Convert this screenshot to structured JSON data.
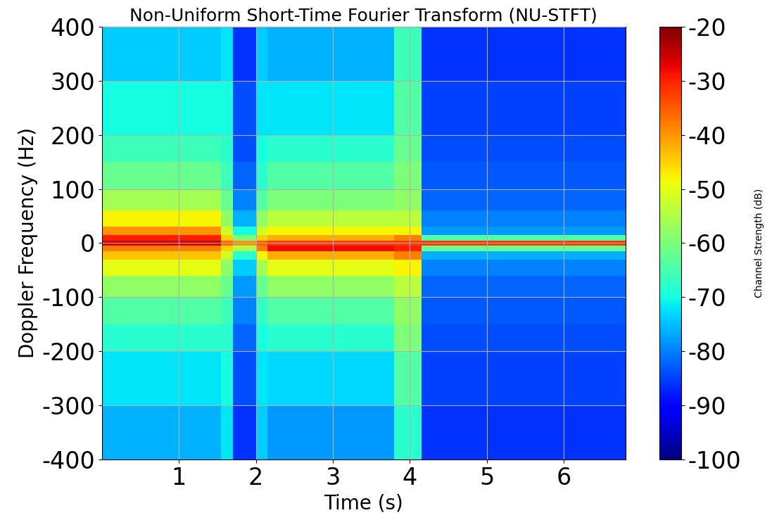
{
  "chart_data": {
    "type": "heatmap",
    "title": "Non-Uniform Short-Time Fourier Transform (NU-STFT)",
    "xlabel": "Time (s)",
    "ylabel": "Doppler Frequency (Hz)",
    "x_edges": [
      0,
      0.5,
      1.0,
      1.55,
      1.7,
      2.0,
      2.15,
      2.6,
      3.1,
      3.6,
      3.8,
      4.15,
      4.6,
      5.2,
      5.8,
      6.4,
      6.8
    ],
    "y_edges": [
      -400,
      -300,
      -200,
      -150,
      -100,
      -60,
      -30,
      -15,
      -5,
      5,
      15,
      30,
      60,
      100,
      150,
      200,
      300,
      400
    ],
    "cells": [
      [
        -76,
        -76,
        -76,
        -72,
        -86,
        -74,
        -78,
        -78,
        -78,
        -78,
        -68,
        -86,
        -86,
        -86,
        -86,
        -86
      ],
      [
        -72,
        -72,
        -72,
        -70,
        -84,
        -72,
        -73,
        -73,
        -73,
        -73,
        -64,
        -85,
        -85,
        -85,
        -85,
        -85
      ],
      [
        -68,
        -68,
        -68,
        -68,
        -82,
        -70,
        -68,
        -68,
        -68,
        -68,
        -60,
        -84,
        -84,
        -84,
        -84,
        -84
      ],
      [
        -64,
        -64,
        -64,
        -66,
        -80,
        -67,
        -64,
        -64,
        -64,
        -64,
        -58,
        -83,
        -83,
        -83,
        -83,
        -83
      ],
      [
        -58,
        -58,
        -58,
        -62,
        -78,
        -62,
        -58,
        -58,
        -58,
        -58,
        -54,
        -82,
        -82,
        -82,
        -82,
        -82
      ],
      [
        -50,
        -50,
        -50,
        -58,
        -74,
        -56,
        -50,
        -50,
        -50,
        -50,
        -48,
        -80,
        -80,
        -80,
        -80,
        -80
      ],
      [
        -44,
        -44,
        -44,
        -52,
        -68,
        -48,
        -42,
        -42,
        -42,
        -42,
        -38,
        -76,
        -76,
        -76,
        -76,
        -76
      ],
      [
        -38,
        -38,
        -38,
        -45,
        -55,
        -38,
        -28,
        -28,
        -28,
        -28,
        -30,
        -62,
        -62,
        -62,
        -62,
        -62
      ],
      [
        -26,
        -26,
        -26,
        -36,
        -40,
        -35,
        -32,
        -32,
        -32,
        -32,
        -32,
        -32,
        -32,
        -32,
        -32,
        -32
      ],
      [
        -30,
        -30,
        -30,
        -45,
        -60,
        -45,
        -42,
        -42,
        -42,
        -42,
        -38,
        -64,
        -64,
        -64,
        -64,
        -64
      ],
      [
        -40,
        -40,
        -40,
        -52,
        -70,
        -52,
        -48,
        -48,
        -48,
        -48,
        -48,
        -78,
        -78,
        -78,
        -78,
        -78
      ],
      [
        -48,
        -48,
        -48,
        -58,
        -76,
        -58,
        -54,
        -54,
        -54,
        -54,
        -54,
        -80,
        -80,
        -80,
        -80,
        -80
      ],
      [
        -56,
        -56,
        -56,
        -62,
        -80,
        -64,
        -60,
        -60,
        -60,
        -60,
        -58,
        -82,
        -82,
        -82,
        -82,
        -82
      ],
      [
        -62,
        -62,
        -62,
        -66,
        -82,
        -68,
        -64,
        -64,
        -64,
        -64,
        -60,
        -83,
        -83,
        -83,
        -83,
        -83
      ],
      [
        -66,
        -66,
        -66,
        -68,
        -84,
        -70,
        -68,
        -68,
        -68,
        -68,
        -62,
        -84,
        -84,
        -84,
        -84,
        -84
      ],
      [
        -70,
        -70,
        -70,
        -70,
        -84,
        -72,
        -72,
        -72,
        -72,
        -72,
        -64,
        -85,
        -85,
        -85,
        -85,
        -85
      ],
      [
        -74,
        -74,
        -74,
        -72,
        -86,
        -74,
        -76,
        -76,
        -76,
        -76,
        -66,
        -86,
        -86,
        -86,
        -86,
        -86
      ]
    ],
    "xlim": [
      0,
      6.8
    ],
    "ylim": [
      -400,
      400
    ],
    "xticks": [
      1,
      2,
      3,
      4,
      5,
      6
    ],
    "yticks": [
      -400,
      -300,
      -200,
      -100,
      0,
      100,
      200,
      300,
      400
    ],
    "grid": true,
    "colorbar": {
      "label": "Channel Strength (dB)",
      "range": [
        -100,
        -20
      ],
      "ticks": [
        -100,
        -90,
        -80,
        -70,
        -60,
        -50,
        -40,
        -30,
        -20
      ]
    }
  }
}
